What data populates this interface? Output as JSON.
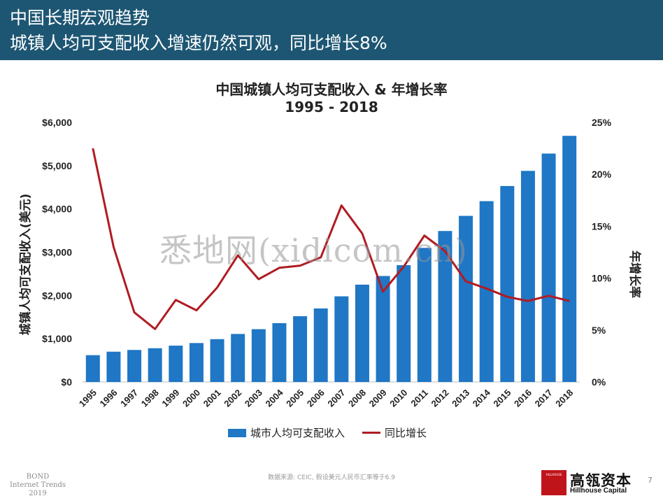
{
  "header": {
    "line1": "中国长期宏观趋势",
    "line2": "城镇人均可支配收入增速仍然可观，同比增长8%"
  },
  "chart_data": {
    "type": "bar",
    "title": "中国城镇人均可支配收入 & 年增长率",
    "subtitle": "1995 - 2018",
    "categories": [
      "1995",
      "1996",
      "1997",
      "1998",
      "1999",
      "2000",
      "2001",
      "2002",
      "2003",
      "2004",
      "2005",
      "2006",
      "2007",
      "2008",
      "2009",
      "2010",
      "2011",
      "2012",
      "2013",
      "2014",
      "2015",
      "2016",
      "2017",
      "2018"
    ],
    "series": [
      {
        "name": "城市人均可支配收入",
        "kind": "bar",
        "axis": "left",
        "color": "#1f77c5",
        "values": [
          620,
          700,
          740,
          780,
          840,
          900,
          990,
          1110,
          1220,
          1360,
          1520,
          1700,
          1980,
          2250,
          2450,
          2700,
          3100,
          3490,
          3840,
          4180,
          4530,
          4880,
          5280,
          5690
        ]
      },
      {
        "name": "同比增长",
        "kind": "line",
        "axis": "right",
        "color": "#b01c23",
        "values": [
          22.5,
          13.0,
          6.7,
          5.1,
          7.9,
          6.9,
          9.1,
          12.2,
          9.9,
          11.0,
          11.2,
          12.0,
          17.0,
          14.3,
          8.7,
          11.1,
          14.1,
          12.6,
          9.7,
          9.0,
          8.2,
          7.8,
          8.3,
          7.8
        ]
      }
    ],
    "ylabel": "城镇人均可支配收入(美元)",
    "y2label": "年增长率",
    "ylim": [
      0,
      6000
    ],
    "y2lim": [
      0,
      25
    ],
    "yticks": [
      "$0",
      "$1,000",
      "$2,000",
      "$3,000",
      "$4,000",
      "$5,000",
      "$6,000"
    ],
    "y2ticks": [
      "0%",
      "5%",
      "10%",
      "15%",
      "20%",
      "25%"
    ],
    "grid": false,
    "legend_position": "bottom"
  },
  "watermark": "悉地网(xidicom.cn)",
  "footer": {
    "left_brand": [
      "BOND",
      "Internet Trends",
      "2019"
    ],
    "source": "数据来源: CEIC, 假设美元人民币汇率等于6.9",
    "logo_mark_text": "HILLHOUSE",
    "logo_cn": "高瓴资本",
    "logo_en": "Hillhouse Capital",
    "page_number": "7"
  }
}
